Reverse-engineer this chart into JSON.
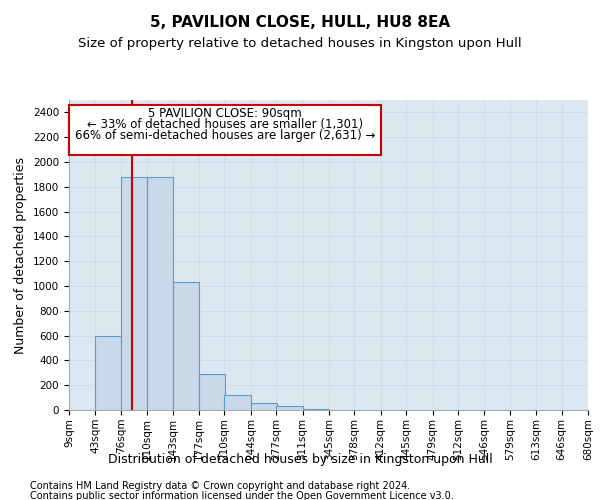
{
  "title": "5, PAVILION CLOSE, HULL, HU8 8EA",
  "subtitle": "Size of property relative to detached houses in Kingston upon Hull",
  "xlabel": "Distribution of detached houses by size in Kingston upon Hull",
  "ylabel": "Number of detached properties",
  "footer1": "Contains HM Land Registry data © Crown copyright and database right 2024.",
  "footer2": "Contains public sector information licensed under the Open Government Licence v3.0.",
  "bin_edges": [
    9,
    43,
    76,
    110,
    143,
    177,
    210,
    244,
    277,
    311,
    345,
    378,
    412,
    445,
    479,
    512,
    546,
    579,
    613,
    646,
    680
  ],
  "bar_heights": [
    0,
    600,
    1880,
    1880,
    1030,
    290,
    120,
    55,
    30,
    5,
    0,
    0,
    0,
    0,
    0,
    0,
    0,
    0,
    0,
    0
  ],
  "bar_facecolor": "#c9d9ea",
  "bar_edgecolor": "#5b9bd5",
  "property_size": 90,
  "property_label": "5 PAVILION CLOSE: 90sqm",
  "pct_smaller": "33%",
  "n_smaller": "1,301",
  "pct_larger": "66%",
  "n_larger": "2,631",
  "vline_color": "#cc0000",
  "annotation_box_color": "#cc0000",
  "ylim": [
    0,
    2500
  ],
  "yticks": [
    0,
    200,
    400,
    600,
    800,
    1000,
    1200,
    1400,
    1600,
    1800,
    2000,
    2200,
    2400
  ],
  "grid_color": "#c8d8e8",
  "background_color": "#dce8f0",
  "title_fontsize": 11,
  "subtitle_fontsize": 9.5,
  "axis_label_fontsize": 9,
  "tick_fontsize": 7.5,
  "footer_fontsize": 7
}
